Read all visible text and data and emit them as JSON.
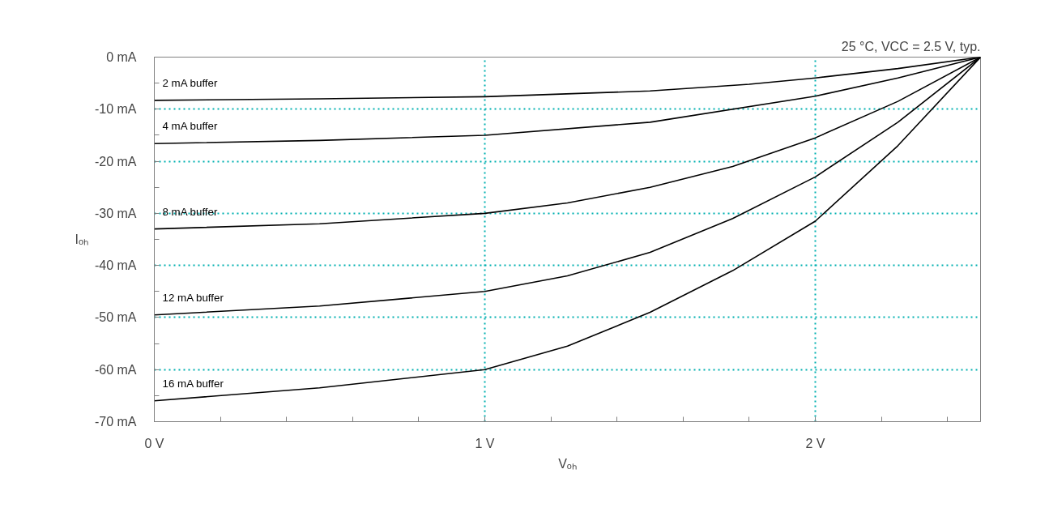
{
  "chart_data": {
    "type": "line",
    "xlabel": "Vₒₕ",
    "ylabel": "Iₒₕ",
    "annotations": [
      "25 °C, VCC = 2.5 V, typ."
    ],
    "xlim": [
      0,
      2.5
    ],
    "ylim": [
      -70,
      0
    ],
    "xticks": [
      {
        "value": 0,
        "label": "0 V"
      },
      {
        "value": 0.2,
        "label": null
      },
      {
        "value": 0.4,
        "label": null
      },
      {
        "value": 0.6,
        "label": null
      },
      {
        "value": 0.8,
        "label": null
      },
      {
        "value": 1,
        "label": "1 V"
      },
      {
        "value": 1.2,
        "label": null
      },
      {
        "value": 1.4,
        "label": null
      },
      {
        "value": 1.6,
        "label": null
      },
      {
        "value": 1.8,
        "label": null
      },
      {
        "value": 2,
        "label": "2 V"
      },
      {
        "value": 2.2,
        "label": null
      },
      {
        "value": 2.4,
        "label": null
      }
    ],
    "yticks": [
      {
        "value": 0,
        "label": "0 mA"
      },
      {
        "value": -5,
        "label": null
      },
      {
        "value": -10,
        "label": "-10 mA"
      },
      {
        "value": -15,
        "label": null
      },
      {
        "value": -20,
        "label": "-20 mA"
      },
      {
        "value": -25,
        "label": null
      },
      {
        "value": -30,
        "label": "-30 mA"
      },
      {
        "value": -35,
        "label": null
      },
      {
        "value": -40,
        "label": "-40 mA"
      },
      {
        "value": -45,
        "label": null
      },
      {
        "value": -50,
        "label": "-50 mA"
      },
      {
        "value": -55,
        "label": null
      },
      {
        "value": -60,
        "label": "-60 mA"
      },
      {
        "value": -65,
        "label": null
      },
      {
        "value": -70,
        "label": "-70 mA"
      }
    ],
    "grid": true,
    "legend": false,
    "marker": "none",
    "line_style": "solid",
    "series": [
      {
        "name": "2 mA buffer",
        "color": "#000000",
        "x": [
          0,
          0.5,
          1,
          1.5,
          1.8,
          2,
          2.25,
          2.5
        ],
        "values": [
          -8.3,
          -8.0,
          -7.6,
          -6.5,
          -5.2,
          -4.0,
          -2.2,
          0
        ]
      },
      {
        "name": "4 mA buffer",
        "color": "#000000",
        "x": [
          0,
          0.5,
          1,
          1.5,
          2,
          2.25,
          2.5
        ],
        "values": [
          -16.6,
          -16.0,
          -15.0,
          -12.5,
          -7.5,
          -4.0,
          0
        ]
      },
      {
        "name": "8 mA buffer",
        "color": "#000000",
        "x": [
          0,
          0.5,
          1,
          1.25,
          1.5,
          1.75,
          2,
          2.25,
          2.5
        ],
        "values": [
          -33.0,
          -32.0,
          -30.0,
          -28.0,
          -25.0,
          -21.0,
          -15.5,
          -8.5,
          0
        ]
      },
      {
        "name": "12 mA buffer",
        "color": "#000000",
        "x": [
          0,
          0.5,
          1,
          1.25,
          1.5,
          1.75,
          2,
          2.25,
          2.5
        ],
        "values": [
          -49.5,
          -47.8,
          -45.0,
          -42.0,
          -37.5,
          -31.0,
          -23.0,
          -12.5,
          0
        ]
      },
      {
        "name": "16 mA buffer",
        "color": "#000000",
        "x": [
          0,
          0.5,
          1,
          1.25,
          1.5,
          1.75,
          2,
          2.25,
          2.5
        ],
        "values": [
          -66.0,
          -63.5,
          -60.0,
          -55.5,
          -49.0,
          -41.0,
          -31.5,
          -17.0,
          0
        ]
      }
    ]
  }
}
